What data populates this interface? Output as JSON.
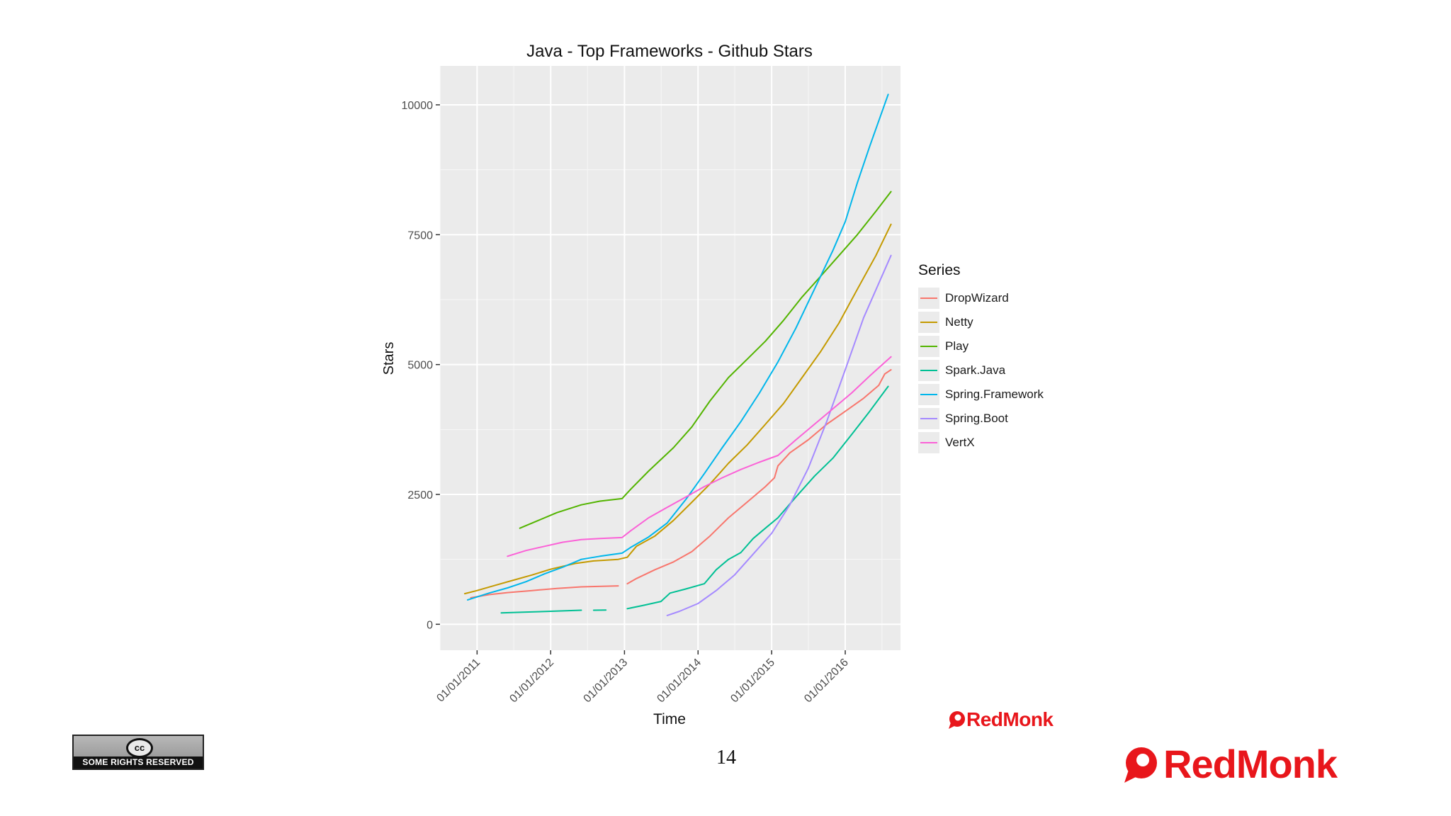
{
  "chart_data": {
    "type": "line",
    "title": "Java - Top Frameworks - Github Stars",
    "xlabel": "Time",
    "ylabel": "Stars",
    "xlim": [
      "2010-07-01",
      "2016-10-01"
    ],
    "ylim": [
      -500,
      10750
    ],
    "y_ticks": [
      0,
      2500,
      5000,
      7500,
      10000
    ],
    "x_ticks": [
      "2011-01-01",
      "2012-01-01",
      "2013-01-01",
      "2014-01-01",
      "2015-01-01",
      "2016-01-01"
    ],
    "x_tick_labels": [
      "01/01/2011",
      "01/01/2012",
      "01/01/2013",
      "01/01/2014",
      "01/01/2015",
      "01/01/2016"
    ],
    "grid": true,
    "legend_title": "Series",
    "legend_position": "right",
    "series": [
      {
        "name": "DropWizard",
        "color": "#F8766D",
        "segments": [
          [
            [
              "2010-12-01",
              510
            ],
            [
              "2011-03-01",
              570
            ],
            [
              "2011-06-01",
              610
            ],
            [
              "2011-10-01",
              650
            ],
            [
              "2012-02-01",
              690
            ],
            [
              "2012-06-01",
              720
            ],
            [
              "2012-12-01",
              740
            ]
          ],
          [
            [
              "2013-01-15",
              780
            ],
            [
              "2013-03-01",
              880
            ],
            [
              "2013-06-01",
              1050
            ],
            [
              "2013-09-01",
              1200
            ],
            [
              "2013-12-01",
              1400
            ],
            [
              "2014-03-01",
              1700
            ],
            [
              "2014-06-01",
              2050
            ],
            [
              "2014-09-01",
              2350
            ],
            [
              "2014-12-01",
              2650
            ],
            [
              "2015-01-15",
              2820
            ],
            [
              "2015-02-01",
              3050
            ],
            [
              "2015-04-01",
              3300
            ],
            [
              "2015-07-01",
              3550
            ],
            [
              "2015-10-01",
              3850
            ],
            [
              "2016-01-01",
              4100
            ],
            [
              "2016-04-01",
              4350
            ],
            [
              "2016-06-15",
              4600
            ],
            [
              "2016-07-15",
              4820
            ],
            [
              "2016-08-15",
              4900
            ]
          ]
        ]
      },
      {
        "name": "Netty",
        "color": "#C49A00",
        "segments": [
          [
            [
              "2010-11-01",
              590
            ],
            [
              "2011-01-01",
              650
            ],
            [
              "2011-04-01",
              750
            ],
            [
              "2011-07-01",
              850
            ],
            [
              "2011-10-01",
              950
            ],
            [
              "2012-01-01",
              1060
            ],
            [
              "2012-05-01",
              1170
            ],
            [
              "2012-08-01",
              1220
            ],
            [
              "2012-12-01",
              1250
            ],
            [
              "2013-01-15",
              1290
            ],
            [
              "2013-03-01",
              1500
            ],
            [
              "2013-06-01",
              1700
            ],
            [
              "2013-09-01",
              2000
            ],
            [
              "2013-12-01",
              2350
            ],
            [
              "2014-03-01",
              2700
            ],
            [
              "2014-06-01",
              3100
            ],
            [
              "2014-09-01",
              3450
            ],
            [
              "2014-12-01",
              3850
            ],
            [
              "2015-03-01",
              4250
            ],
            [
              "2015-06-01",
              4750
            ],
            [
              "2015-09-01",
              5250
            ],
            [
              "2015-12-01",
              5800
            ],
            [
              "2016-03-01",
              6450
            ],
            [
              "2016-06-01",
              7100
            ],
            [
              "2016-08-15",
              7700
            ]
          ]
        ]
      },
      {
        "name": "Play",
        "color": "#53B400",
        "segments": [
          [
            [
              "2011-08-01",
              1850
            ],
            [
              "2011-11-01",
              2000
            ],
            [
              "2012-02-01",
              2150
            ],
            [
              "2012-06-01",
              2300
            ],
            [
              "2012-09-01",
              2370
            ],
            [
              "2012-12-20",
              2420
            ],
            [
              "2013-02-01",
              2600
            ],
            [
              "2013-05-01",
              2950
            ],
            [
              "2013-09-01",
              3400
            ],
            [
              "2013-12-01",
              3800
            ],
            [
              "2014-03-01",
              4300
            ],
            [
              "2014-06-01",
              4750
            ],
            [
              "2014-09-01",
              5100
            ],
            [
              "2014-12-01",
              5450
            ],
            [
              "2015-03-01",
              5850
            ],
            [
              "2015-06-01",
              6300
            ],
            [
              "2015-09-01",
              6700
            ],
            [
              "2015-12-01",
              7100
            ],
            [
              "2016-03-01",
              7500
            ],
            [
              "2016-06-01",
              7950
            ],
            [
              "2016-08-15",
              8330
            ]
          ]
        ]
      },
      {
        "name": "Spark.Java",
        "color": "#00C094",
        "segments": [
          [
            [
              "2011-05-01",
              220
            ],
            [
              "2011-09-01",
              235
            ],
            [
              "2012-01-01",
              250
            ],
            [
              "2012-06-01",
              270
            ]
          ],
          [
            [
              "2012-08-01",
              270
            ],
            [
              "2012-10-01",
              275
            ]
          ],
          [
            [
              "2013-01-15",
              300
            ],
            [
              "2013-04-01",
              360
            ],
            [
              "2013-07-01",
              440
            ],
            [
              "2013-08-15",
              600
            ],
            [
              "2013-11-01",
              680
            ],
            [
              "2014-02-01",
              780
            ],
            [
              "2014-04-01",
              1050
            ],
            [
              "2014-06-01",
              1250
            ],
            [
              "2014-08-01",
              1380
            ],
            [
              "2014-10-01",
              1650
            ],
            [
              "2014-12-01",
              1850
            ],
            [
              "2015-02-01",
              2050
            ],
            [
              "2015-05-01",
              2450
            ],
            [
              "2015-08-01",
              2850
            ],
            [
              "2015-11-01",
              3200
            ],
            [
              "2016-02-01",
              3650
            ],
            [
              "2016-05-01",
              4100
            ],
            [
              "2016-08-01",
              4580
            ]
          ]
        ]
      },
      {
        "name": "Spring.Framework",
        "color": "#00B6EB",
        "segments": [
          [
            [
              "2010-11-15",
              470
            ],
            [
              "2011-03-01",
              600
            ],
            [
              "2011-06-01",
              700
            ],
            [
              "2011-09-01",
              820
            ],
            [
              "2011-12-01",
              970
            ],
            [
              "2012-03-01",
              1100
            ],
            [
              "2012-06-01",
              1250
            ],
            [
              "2012-09-01",
              1310
            ],
            [
              "2012-12-20",
              1370
            ],
            [
              "2013-02-01",
              1480
            ],
            [
              "2013-05-01",
              1680
            ],
            [
              "2013-08-01",
              1950
            ],
            [
              "2013-11-01",
              2400
            ],
            [
              "2014-02-01",
              2900
            ],
            [
              "2014-05-01",
              3400
            ],
            [
              "2014-08-01",
              3900
            ],
            [
              "2014-11-01",
              4450
            ],
            [
              "2015-02-01",
              5050
            ],
            [
              "2015-05-01",
              5700
            ],
            [
              "2015-08-01",
              6450
            ],
            [
              "2015-11-01",
              7200
            ],
            [
              "2016-01-01",
              7750
            ],
            [
              "2016-03-01",
              8500
            ],
            [
              "2016-05-01",
              9200
            ],
            [
              "2016-08-01",
              10200
            ]
          ]
        ]
      },
      {
        "name": "Spring.Boot",
        "color": "#A58AFF",
        "segments": [
          [
            [
              "2013-08-01",
              170
            ],
            [
              "2013-10-01",
              250
            ],
            [
              "2014-01-01",
              400
            ],
            [
              "2014-04-01",
              650
            ],
            [
              "2014-07-01",
              950
            ],
            [
              "2014-10-01",
              1350
            ],
            [
              "2015-01-01",
              1750
            ],
            [
              "2015-04-01",
              2300
            ],
            [
              "2015-07-01",
              3000
            ],
            [
              "2015-10-01",
              3900
            ],
            [
              "2016-01-01",
              4900
            ],
            [
              "2016-04-01",
              5900
            ],
            [
              "2016-08-15",
              7100
            ]
          ]
        ]
      },
      {
        "name": "VertX",
        "color": "#FB61D7",
        "segments": [
          [
            [
              "2011-06-01",
              1310
            ],
            [
              "2011-09-01",
              1420
            ],
            [
              "2011-12-01",
              1500
            ],
            [
              "2012-03-01",
              1580
            ],
            [
              "2012-06-01",
              1630
            ],
            [
              "2012-09-01",
              1650
            ],
            [
              "2012-12-20",
              1670
            ],
            [
              "2013-02-01",
              1800
            ],
            [
              "2013-05-01",
              2050
            ],
            [
              "2013-08-01",
              2250
            ],
            [
              "2013-11-01",
              2450
            ],
            [
              "2014-02-01",
              2650
            ],
            [
              "2014-05-01",
              2820
            ],
            [
              "2014-08-01",
              2980
            ],
            [
              "2014-11-01",
              3120
            ],
            [
              "2015-02-01",
              3250
            ],
            [
              "2015-05-01",
              3550
            ],
            [
              "2015-08-01",
              3850
            ],
            [
              "2015-11-01",
              4150
            ],
            [
              "2016-02-01",
              4450
            ],
            [
              "2016-05-01",
              4780
            ],
            [
              "2016-08-15",
              5150
            ]
          ]
        ]
      }
    ]
  },
  "slide": {
    "page_number": "14",
    "license_badge": "SOME RIGHTS RESERVED",
    "license_symbol": "cc",
    "logo_text": "RedMonk",
    "logo_color": "#e8161b"
  }
}
